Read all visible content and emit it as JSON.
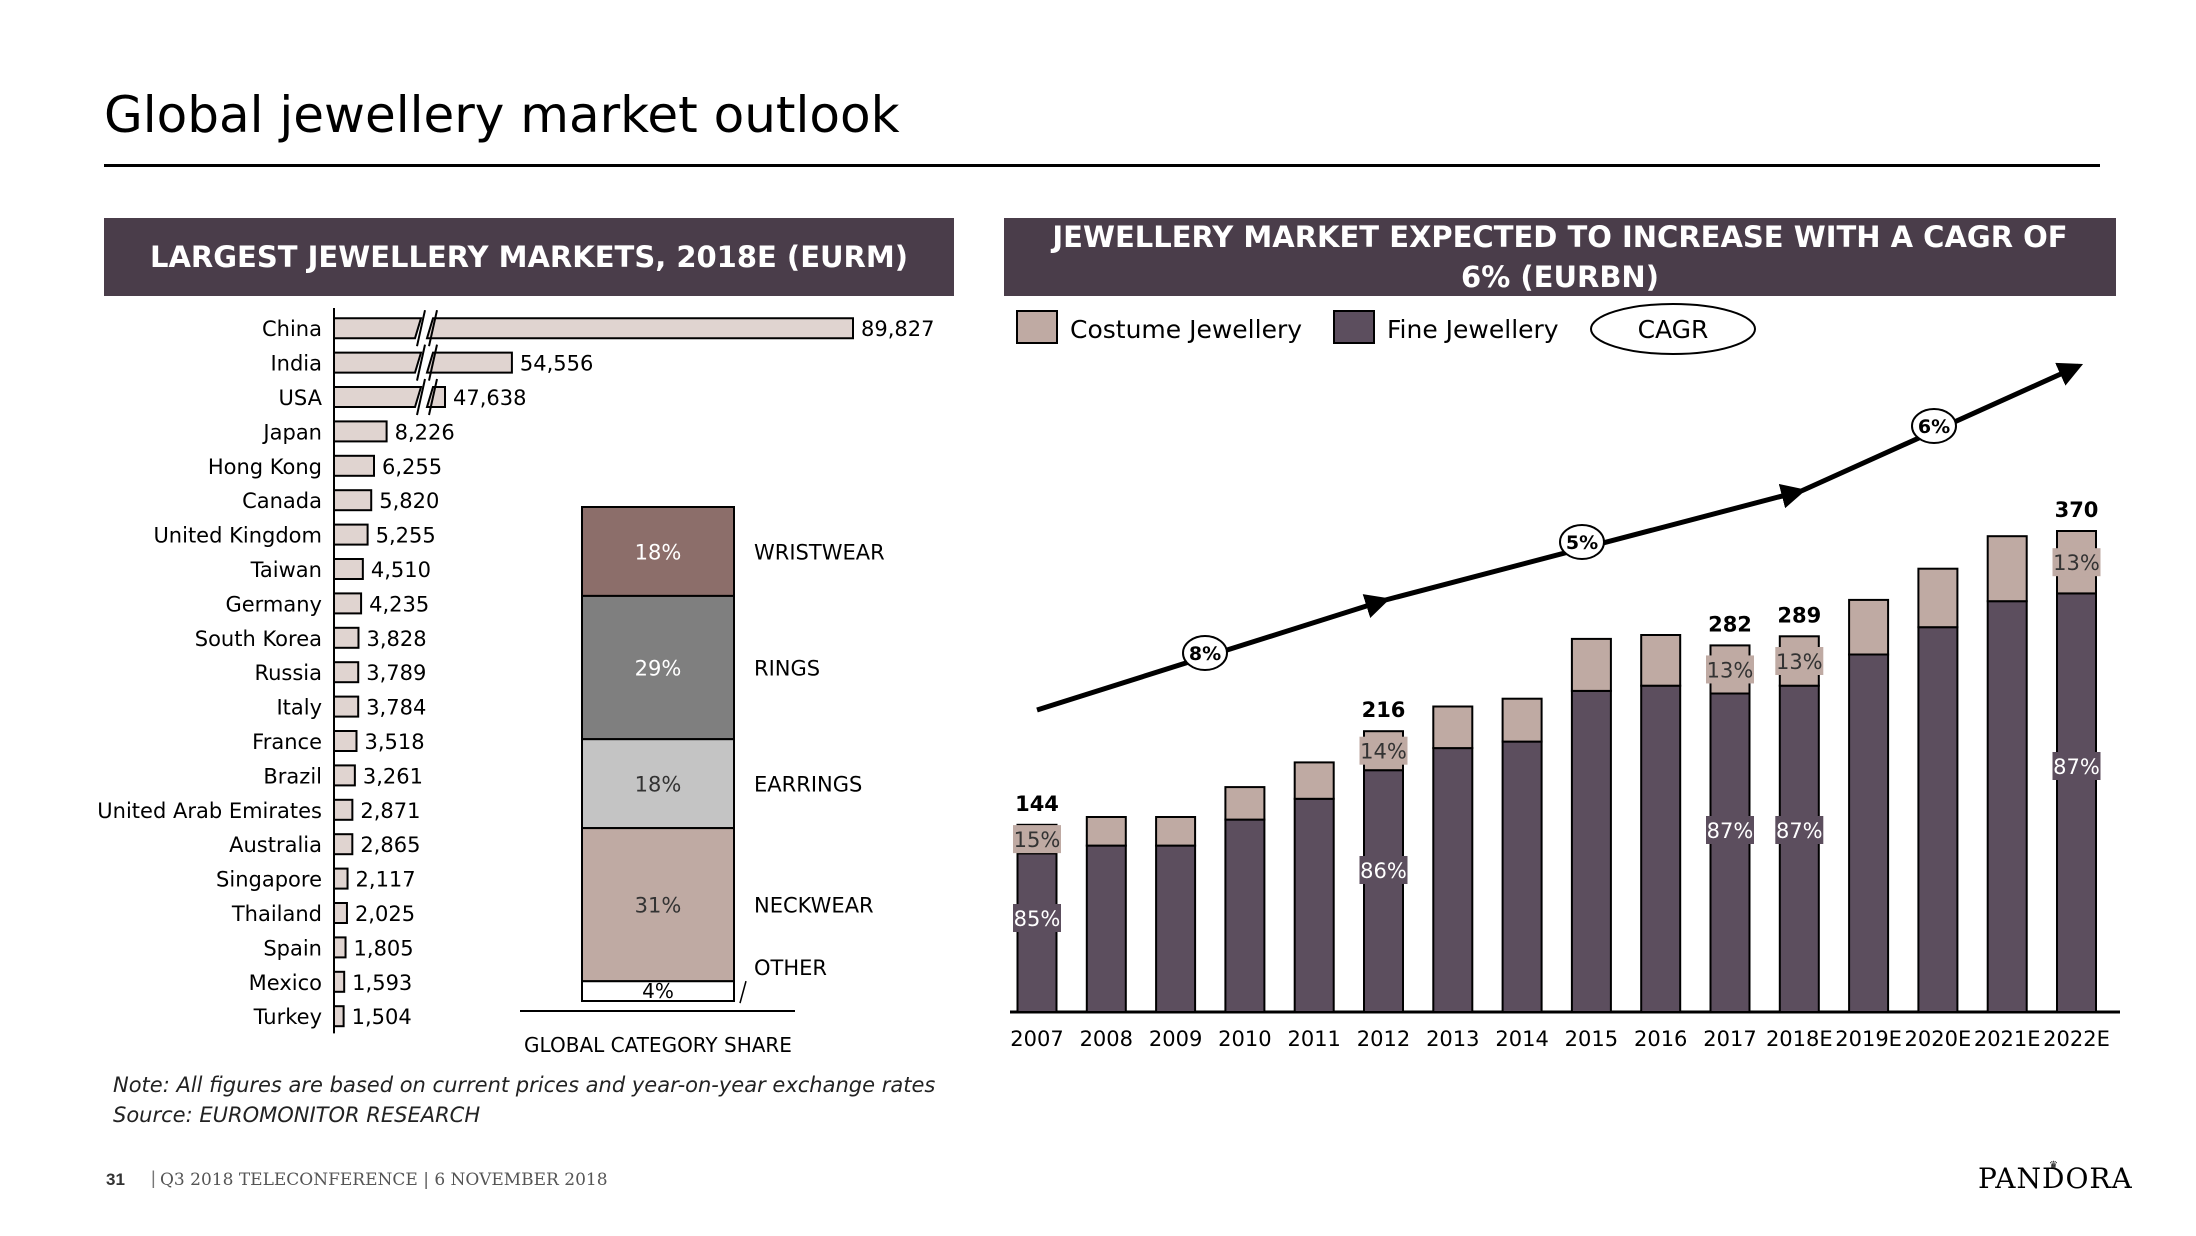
{
  "slide": {
    "title": "Global jewellery market outlook",
    "footer_page": "31",
    "footer_text": "Q3 2018 TELECONFERENCE | 6 NOVEMBER 2018",
    "brand": "PANDORA",
    "note": "Note: All figures are based on  current prices and year-on-year exchange rates",
    "source": "Source: EUROMONITOR RESEARCH"
  },
  "left_panel": {
    "header": "LARGEST JEWELLERY MARKETS, 2018E (EURM)"
  },
  "right_panel": {
    "header": "JEWELLERY MARKET EXPECTED TO INCREASE WITH A CAGR OF 6% (EURBN)"
  },
  "colors": {
    "header_bg": "#4a3d4a",
    "costume": "#bfaaa3",
    "fine": "#5c4e5e",
    "market_bar": "#e0d4d0",
    "wristwear": "#8c6e6a",
    "rings": "#7f7f7f",
    "earrings": "#c4c4c4",
    "neckwear": "#bfaaa3",
    "other": "#ffffff"
  },
  "chart_data": [
    {
      "type": "bar",
      "orientation": "horizontal",
      "title": "LARGEST JEWELLERY MARKETS, 2018E (EURM)",
      "axis_break": true,
      "categories": [
        "China",
        "India",
        "USA",
        "Japan",
        "Hong Kong",
        "Canada",
        "United Kingdom",
        "Taiwan",
        "Germany",
        "South Korea",
        "Russia",
        "Italy",
        "France",
        "Brazil",
        "United Arab Emirates",
        "Australia",
        "Singapore",
        "Thailand",
        "Spain",
        "Mexico",
        "Turkey"
      ],
      "values": [
        89827,
        54556,
        47638,
        8226,
        6255,
        5820,
        5255,
        4510,
        4235,
        3828,
        3789,
        3784,
        3518,
        3261,
        2871,
        2865,
        2117,
        2025,
        1805,
        1593,
        1504
      ],
      "labels": [
        "89,827",
        "54,556",
        "47,638",
        "8,226",
        "6,255",
        "5,820",
        "5,255",
        "4,510",
        "4,235",
        "3,828",
        "3,789",
        "3,784",
        "3,518",
        "3,261",
        "2,871",
        "2,865",
        "2,117",
        "2,025",
        "1,805",
        "1,593",
        "1,504"
      ]
    },
    {
      "type": "bar",
      "stacked": true,
      "percent": true,
      "xlabel": "GLOBAL CATEGORY SHARE",
      "segments": [
        {
          "name": "WRISTWEAR",
          "value": 18,
          "label": "18%"
        },
        {
          "name": "RINGS",
          "value": 29,
          "label": "29%"
        },
        {
          "name": "EARRINGS",
          "value": 18,
          "label": "18%"
        },
        {
          "name": "NECKWEAR",
          "value": 31,
          "label": "31%"
        },
        {
          "name": "OTHER",
          "value": 4,
          "label": "4%"
        }
      ]
    },
    {
      "type": "bar",
      "stacked": true,
      "title": "JEWELLERY MARKET EXPECTED TO INCREASE WITH A CAGR OF 6% (EURBN)",
      "legend": [
        "Costume Jewellery",
        "Fine Jewellery",
        "CAGR"
      ],
      "legend_position": "top-left",
      "categories": [
        "2007",
        "2008",
        "2009",
        "2010",
        "2011",
        "2012",
        "2013",
        "2014",
        "2015",
        "2016",
        "2017",
        "2018E",
        "2019E",
        "2020E",
        "2021E",
        "2022E"
      ],
      "ylim": [
        0,
        420
      ],
      "series": [
        {
          "name": "Fine Jewellery",
          "values": [
            122,
            128,
            128,
            148,
            164,
            186,
            203,
            208,
            247,
            251,
            245,
            251,
            275,
            296,
            316,
            322
          ]
        },
        {
          "name": "Costume Jewellery",
          "values": [
            22,
            22,
            22,
            25,
            28,
            30,
            32,
            33,
            40,
            39,
            37,
            38,
            42,
            45,
            50,
            48
          ]
        }
      ],
      "total_labels": [
        {
          "index": 0,
          "text": "144"
        },
        {
          "index": 5,
          "text": "216"
        },
        {
          "index": 10,
          "text": "282"
        },
        {
          "index": 11,
          "text": "289"
        },
        {
          "index": 15,
          "text": "370"
        }
      ],
      "pct_labels": [
        {
          "index": 0,
          "costume": "15%",
          "fine": "85%"
        },
        {
          "index": 5,
          "costume": "14%",
          "fine": "86%"
        },
        {
          "index": 10,
          "costume": "13%",
          "fine": "87%"
        },
        {
          "index": 11,
          "costume": "13%",
          "fine": "87%"
        },
        {
          "index": 15,
          "costume": "13%",
          "fine": "87%"
        }
      ],
      "cagr": [
        {
          "label": "8%",
          "from": "2007",
          "to": "2012"
        },
        {
          "label": "5%",
          "from": "2012",
          "to": "2018E"
        },
        {
          "label": "6%",
          "from": "2018E",
          "to": "2022E"
        }
      ]
    }
  ]
}
